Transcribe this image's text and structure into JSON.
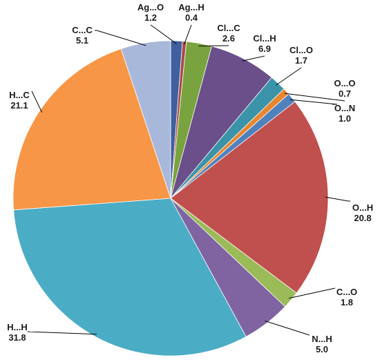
{
  "chart_data": {
    "type": "pie",
    "title": "",
    "start_angle_deg": 0,
    "direction": "clockwise",
    "slices": [
      {
        "label": "Ag...O",
        "value": 1.2,
        "value_text": "1.2",
        "color": "#3F5F9E"
      },
      {
        "label": "Ag...H",
        "value": 0.4,
        "value_text": "0.4",
        "color": "#A94A48"
      },
      {
        "label": "Cl...C",
        "value": 2.6,
        "value_text": "2.6",
        "color": "#79A33E"
      },
      {
        "label": "Cl...H",
        "value": 6.9,
        "value_text": "6.9",
        "color": "#6A4F8B"
      },
      {
        "label": "Cl...O",
        "value": 1.7,
        "value_text": "1.7",
        "color": "#3A93A8"
      },
      {
        "label": "O...O",
        "value": 0.7,
        "value_text": "0.7",
        "color": "#E7862F"
      },
      {
        "label": "O...N",
        "value": 1.0,
        "value_text": "1.0",
        "color": "#4F81BD"
      },
      {
        "label": "O...H",
        "value": 20.8,
        "value_text": "20.8",
        "color": "#C0504D"
      },
      {
        "label": "C...O",
        "value": 1.8,
        "value_text": "1.8",
        "color": "#9BBB59"
      },
      {
        "label": "N...H",
        "value": 5.0,
        "value_text": "5.0",
        "color": "#8064A2"
      },
      {
        "label": "H...H",
        "value": 31.8,
        "value_text": "31.8",
        "color": "#4BACC6"
      },
      {
        "label": "H...C",
        "value": 21.1,
        "value_text": "21.1",
        "color": "#F79646"
      },
      {
        "label": "C...C",
        "value": 5.1,
        "value_text": "5.1",
        "color": "#A8B8DA"
      }
    ]
  }
}
